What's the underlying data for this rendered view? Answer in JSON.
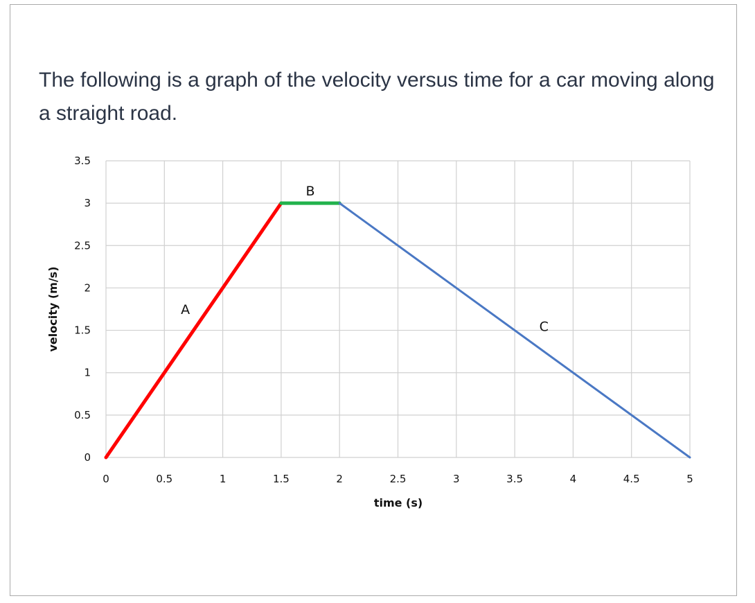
{
  "question": "The following is a graph of the velocity versus time for a car moving along a straight road.",
  "colors": {
    "grid": "#d0d0d0",
    "segment_a": "#ff0000",
    "segment_b": "#22b24c",
    "segment_c": "#4a78c4"
  },
  "chart_data": {
    "type": "line",
    "xlabel": "time (s)",
    "ylabel": "velocity (m/s)",
    "xlim": [
      0,
      5
    ],
    "ylim": [
      0,
      3.5
    ],
    "xticks": [
      "0",
      "0.5",
      "1",
      "1.5",
      "2",
      "2.5",
      "3",
      "3.5",
      "4",
      "4.5",
      "5"
    ],
    "yticks": [
      "0",
      "0.5",
      "1",
      "1.5",
      "2",
      "2.5",
      "3",
      "3.5"
    ],
    "grid": true,
    "series": [
      {
        "label": "A",
        "color": "#ff0000",
        "x": [
          0,
          1.5
        ],
        "y": [
          0,
          3
        ]
      },
      {
        "label": "B",
        "color": "#22b24c",
        "x": [
          1.5,
          2
        ],
        "y": [
          3,
          3
        ]
      },
      {
        "label": "C",
        "color": "#4a78c4",
        "x": [
          2,
          5
        ],
        "y": [
          3,
          0
        ]
      }
    ]
  }
}
